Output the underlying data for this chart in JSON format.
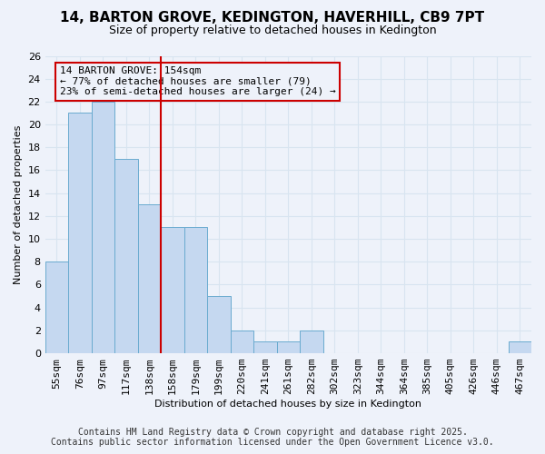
{
  "title_line1": "14, BARTON GROVE, KEDINGTON, HAVERHILL, CB9 7PT",
  "title_line2": "Size of property relative to detached houses in Kedington",
  "xlabel": "Distribution of detached houses by size in Kedington",
  "ylabel": "Number of detached properties",
  "bar_values": [
    8,
    21,
    22,
    17,
    13,
    11,
    11,
    5,
    2,
    1,
    1,
    2,
    0,
    0,
    0,
    0,
    0,
    0,
    0,
    0,
    1
  ],
  "bin_labels": [
    "55sqm",
    "76sqm",
    "97sqm",
    "117sqm",
    "138sqm",
    "158sqm",
    "179sqm",
    "199sqm",
    "220sqm",
    "241sqm",
    "261sqm",
    "282sqm",
    "302sqm",
    "323sqm",
    "344sqm",
    "364sqm",
    "385sqm",
    "405sqm",
    "426sqm",
    "446sqm",
    "467sqm"
  ],
  "bar_color": "#c5d8f0",
  "bar_edge_color": "#6aabcf",
  "annotation_text": "14 BARTON GROVE: 154sqm\n← 77% of detached houses are smaller (79)\n23% of semi-detached houses are larger (24) →",
  "vline_index": 5,
  "vline_color": "#cc0000",
  "annotation_box_edge_color": "#cc0000",
  "ylim": [
    0,
    26
  ],
  "yticks": [
    0,
    2,
    4,
    6,
    8,
    10,
    12,
    14,
    16,
    18,
    20,
    22,
    24,
    26
  ],
  "footer_line1": "Contains HM Land Registry data © Crown copyright and database right 2025.",
  "footer_line2": "Contains public sector information licensed under the Open Government Licence v3.0.",
  "background_color": "#eef2fa",
  "grid_color": "#d8e4f0",
  "title_fontsize": 11,
  "subtitle_fontsize": 9,
  "tick_fontsize": 8,
  "label_fontsize": 8,
  "annotation_fontsize": 8,
  "footer_fontsize": 7
}
